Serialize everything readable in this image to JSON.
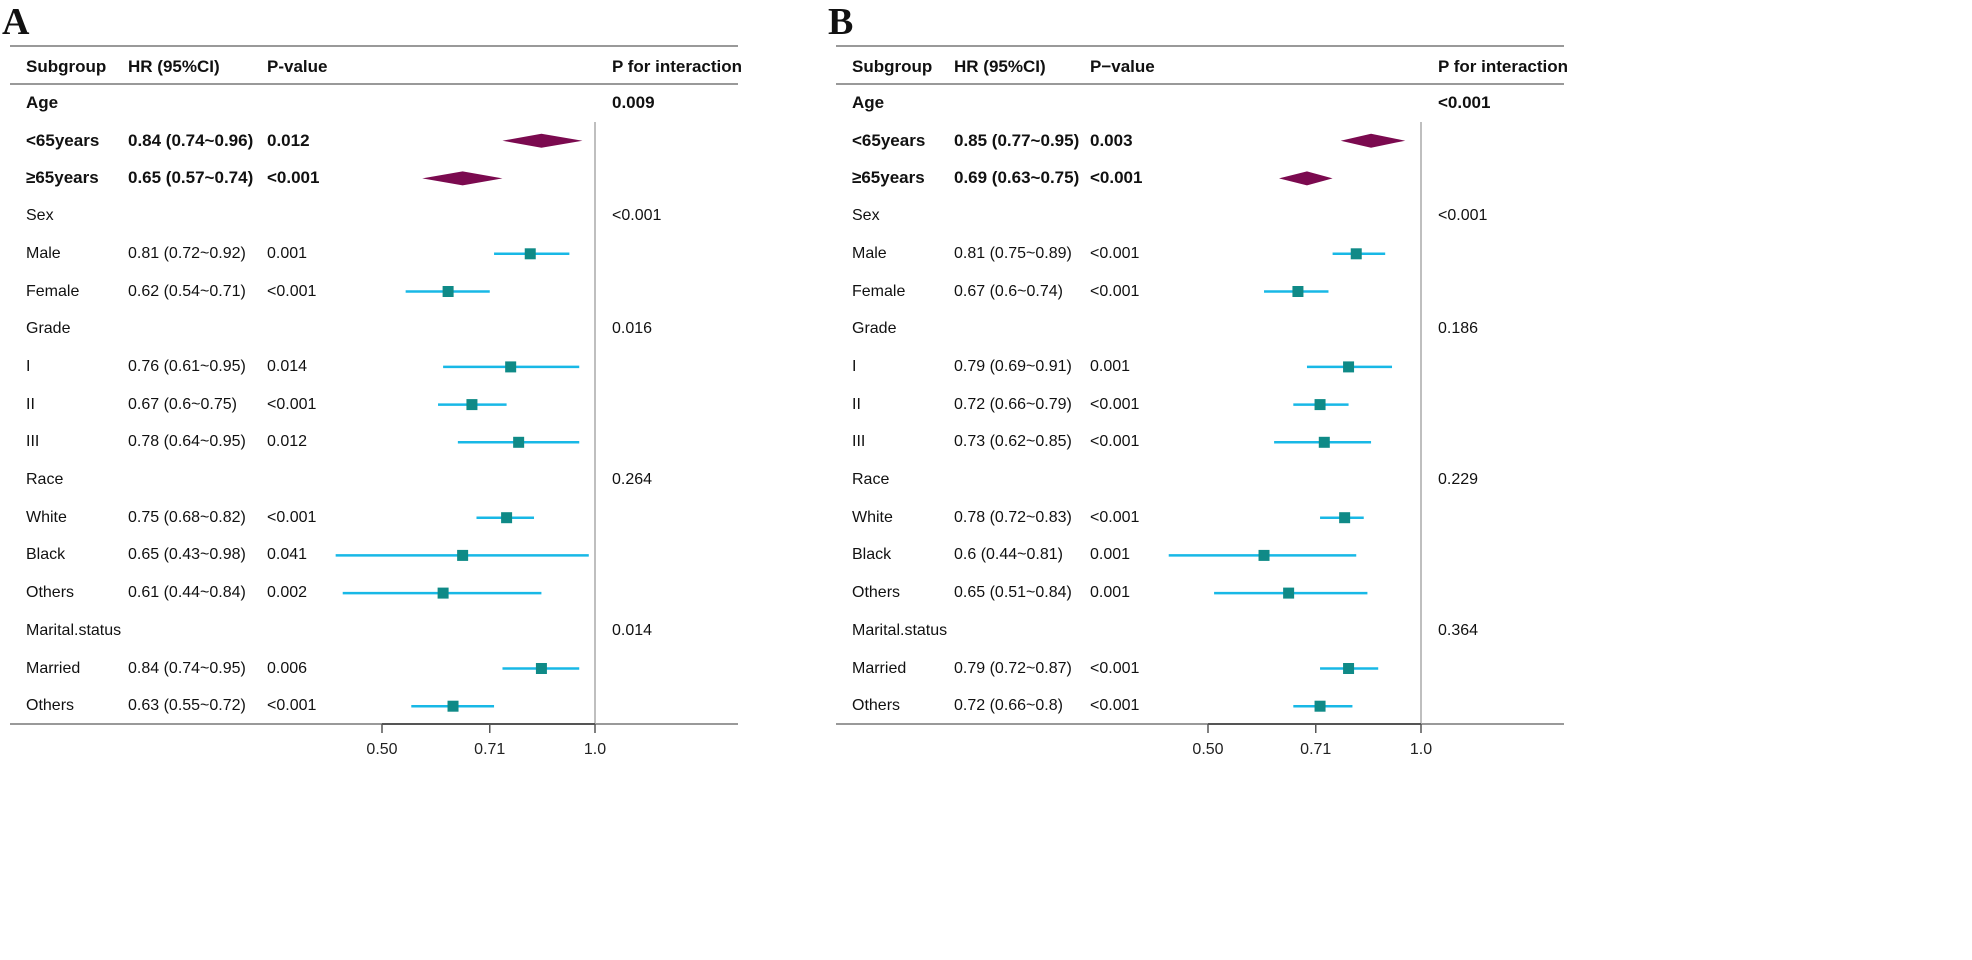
{
  "colors": {
    "diamond": "#7b0a4f",
    "square": "#0f8a87",
    "ci": "#18b8e6",
    "rule": "#999999",
    "axis": "#555555"
  },
  "chart_data": [
    {
      "type": "forest",
      "panel": "A",
      "headers": {
        "subgroup": "Subgroup",
        "hr": "HR (95%CI)",
        "p": "P-value",
        "pint": "P for interaction"
      },
      "xaxis": {
        "type": "log",
        "reference": 1.0,
        "ticks": [
          0.5,
          0.71,
          1.0
        ],
        "tick_labels": [
          "0.50",
          "0.71",
          "1.0"
        ]
      },
      "rows": [
        {
          "label": "Age",
          "hr_text": "",
          "p_text": "",
          "pint": "0.009",
          "bold": true,
          "kind": "header"
        },
        {
          "label": "<65years",
          "hr_text": "0.84 (0.74~0.96)",
          "p_text": "0.012",
          "pint": "",
          "bold": true,
          "kind": "diamond",
          "hr": 0.84,
          "lo": 0.74,
          "hi": 0.96
        },
        {
          "label": "≥65years",
          "hr_text": "0.65 (0.57~0.74)",
          "p_text": "<0.001",
          "pint": "",
          "bold": true,
          "kind": "diamond",
          "hr": 0.65,
          "lo": 0.57,
          "hi": 0.74
        },
        {
          "label": "Sex",
          "hr_text": "",
          "p_text": "",
          "pint": "<0.001",
          "bold": false,
          "kind": "header"
        },
        {
          "label": "Male",
          "hr_text": "0.81 (0.72~0.92)",
          "p_text": "0.001",
          "pint": "",
          "bold": false,
          "kind": "square",
          "hr": 0.81,
          "lo": 0.72,
          "hi": 0.92
        },
        {
          "label": "Female",
          "hr_text": "0.62 (0.54~0.71)",
          "p_text": "<0.001",
          "pint": "",
          "bold": false,
          "kind": "square",
          "hr": 0.62,
          "lo": 0.54,
          "hi": 0.71
        },
        {
          "label": "Grade",
          "hr_text": "",
          "p_text": "",
          "pint": "0.016",
          "bold": false,
          "kind": "header"
        },
        {
          "label": "I",
          "hr_text": "0.76 (0.61~0.95)",
          "p_text": "0.014",
          "pint": "",
          "bold": false,
          "kind": "square",
          "hr": 0.76,
          "lo": 0.61,
          "hi": 0.95
        },
        {
          "label": "II",
          "hr_text": "0.67 (0.6~0.75)",
          "p_text": "<0.001",
          "pint": "",
          "bold": false,
          "kind": "square",
          "hr": 0.67,
          "lo": 0.6,
          "hi": 0.75
        },
        {
          "label": "III",
          "hr_text": "0.78 (0.64~0.95)",
          "p_text": "0.012",
          "pint": "",
          "bold": false,
          "kind": "square",
          "hr": 0.78,
          "lo": 0.64,
          "hi": 0.95
        },
        {
          "label": "Race",
          "hr_text": "",
          "p_text": "",
          "pint": "0.264",
          "bold": false,
          "kind": "header"
        },
        {
          "label": "White",
          "hr_text": "0.75 (0.68~0.82)",
          "p_text": "<0.001",
          "pint": "",
          "bold": false,
          "kind": "square",
          "hr": 0.75,
          "lo": 0.68,
          "hi": 0.82
        },
        {
          "label": "Black",
          "hr_text": "0.65 (0.43~0.98)",
          "p_text": "0.041",
          "pint": "",
          "bold": false,
          "kind": "square",
          "hr": 0.65,
          "lo": 0.43,
          "hi": 0.98
        },
        {
          "label": "Others",
          "hr_text": "0.61 (0.44~0.84)",
          "p_text": "0.002",
          "pint": "",
          "bold": false,
          "kind": "square",
          "hr": 0.61,
          "lo": 0.44,
          "hi": 0.84
        },
        {
          "label": "Marital.status",
          "hr_text": "",
          "p_text": "",
          "pint": "0.014",
          "bold": false,
          "kind": "header"
        },
        {
          "label": "Married",
          "hr_text": "0.84 (0.74~0.95)",
          "p_text": "0.006",
          "pint": "",
          "bold": false,
          "kind": "square",
          "hr": 0.84,
          "lo": 0.74,
          "hi": 0.95
        },
        {
          "label": "Others",
          "hr_text": "0.63 (0.55~0.72)",
          "p_text": "<0.001",
          "pint": "",
          "bold": false,
          "kind": "square",
          "hr": 0.63,
          "lo": 0.55,
          "hi": 0.72
        }
      ]
    },
    {
      "type": "forest",
      "panel": "B",
      "headers": {
        "subgroup": "Subgroup",
        "hr": "HR (95%CI)",
        "p": "P−value",
        "pint": "P for interaction"
      },
      "xaxis": {
        "type": "log",
        "reference": 1.0,
        "ticks": [
          0.5,
          0.71,
          1.0
        ],
        "tick_labels": [
          "0.50",
          "0.71",
          "1.0"
        ]
      },
      "rows": [
        {
          "label": "Age",
          "hr_text": "",
          "p_text": "",
          "pint": "<0.001",
          "bold": true,
          "kind": "header"
        },
        {
          "label": "<65years",
          "hr_text": "0.85 (0.77~0.95)",
          "p_text": "0.003",
          "pint": "",
          "bold": true,
          "kind": "diamond",
          "hr": 0.85,
          "lo": 0.77,
          "hi": 0.95
        },
        {
          "label": "≥65years",
          "hr_text": "0.69 (0.63~0.75)",
          "p_text": "<0.001",
          "pint": "",
          "bold": true,
          "kind": "diamond",
          "hr": 0.69,
          "lo": 0.63,
          "hi": 0.75
        },
        {
          "label": "Sex",
          "hr_text": "",
          "p_text": "",
          "pint": "<0.001",
          "bold": false,
          "kind": "header"
        },
        {
          "label": "Male",
          "hr_text": "0.81 (0.75~0.89)",
          "p_text": "<0.001",
          "pint": "",
          "bold": false,
          "kind": "square",
          "hr": 0.81,
          "lo": 0.75,
          "hi": 0.89
        },
        {
          "label": "Female",
          "hr_text": "0.67 (0.6~0.74)",
          "p_text": "<0.001",
          "pint": "",
          "bold": false,
          "kind": "square",
          "hr": 0.67,
          "lo": 0.6,
          "hi": 0.74
        },
        {
          "label": "Grade",
          "hr_text": "",
          "p_text": "",
          "pint": "0.186",
          "bold": false,
          "kind": "header"
        },
        {
          "label": "I",
          "hr_text": "0.79 (0.69~0.91)",
          "p_text": "0.001",
          "pint": "",
          "bold": false,
          "kind": "square",
          "hr": 0.79,
          "lo": 0.69,
          "hi": 0.91
        },
        {
          "label": "II",
          "hr_text": "0.72 (0.66~0.79)",
          "p_text": "<0.001",
          "pint": "",
          "bold": false,
          "kind": "square",
          "hr": 0.72,
          "lo": 0.66,
          "hi": 0.79
        },
        {
          "label": "III",
          "hr_text": "0.73 (0.62~0.85)",
          "p_text": "<0.001",
          "pint": "",
          "bold": false,
          "kind": "square",
          "hr": 0.73,
          "lo": 0.62,
          "hi": 0.85
        },
        {
          "label": "Race",
          "hr_text": "",
          "p_text": "",
          "pint": "0.229",
          "bold": false,
          "kind": "header"
        },
        {
          "label": "White",
          "hr_text": "0.78 (0.72~0.83)",
          "p_text": "<0.001",
          "pint": "",
          "bold": false,
          "kind": "square",
          "hr": 0.78,
          "lo": 0.72,
          "hi": 0.83
        },
        {
          "label": "Black",
          "hr_text": "0.6 (0.44~0.81)",
          "p_text": "0.001",
          "pint": "",
          "bold": false,
          "kind": "square",
          "hr": 0.6,
          "lo": 0.44,
          "hi": 0.81
        },
        {
          "label": "Others",
          "hr_text": "0.65 (0.51~0.84)",
          "p_text": "0.001",
          "pint": "",
          "bold": false,
          "kind": "square",
          "hr": 0.65,
          "lo": 0.51,
          "hi": 0.84
        },
        {
          "label": "Marital.status",
          "hr_text": "",
          "p_text": "",
          "pint": "0.364",
          "bold": false,
          "kind": "header"
        },
        {
          "label": "Married",
          "hr_text": "0.79 (0.72~0.87)",
          "p_text": "<0.001",
          "pint": "",
          "bold": false,
          "kind": "square",
          "hr": 0.79,
          "lo": 0.72,
          "hi": 0.87
        },
        {
          "label": "Others",
          "hr_text": "0.72 (0.66~0.8)",
          "p_text": "<0.001",
          "pint": "",
          "bold": false,
          "kind": "square",
          "hr": 0.72,
          "lo": 0.66,
          "hi": 0.8
        }
      ]
    }
  ]
}
